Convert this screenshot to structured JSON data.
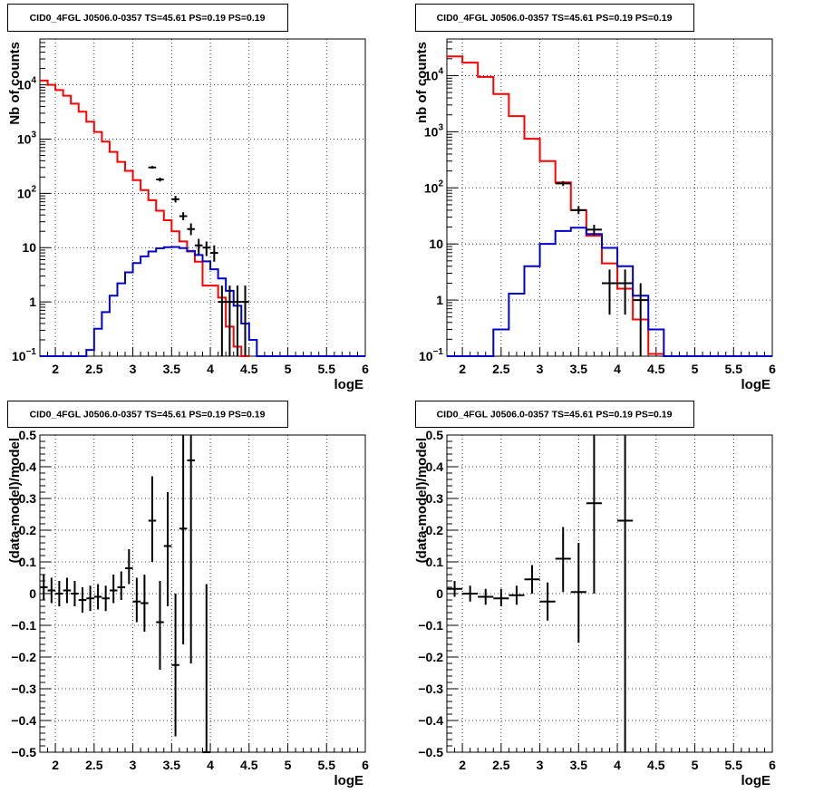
{
  "chart_data": [
    {
      "id": "tl",
      "type": "histogram",
      "title": "CID0_4FGL J0506.0-0357 TS=45.61 PS=0.19 PS=0.19",
      "xlabel": "logE",
      "ylabel": "Nb of counts",
      "xlim": [
        1.8,
        6.0
      ],
      "ylim": [
        0.1,
        70000
      ],
      "yscale": "log",
      "grid": true,
      "xticks": [
        "2",
        "2.5",
        "3",
        "3.5",
        "4",
        "4.5",
        "5",
        "5.5",
        "6"
      ],
      "yticks": [
        {
          "v": 0.1,
          "label": "10",
          "sup": "−1"
        },
        {
          "v": 1,
          "label": "1",
          "sup": ""
        },
        {
          "v": 10,
          "label": "10",
          "sup": ""
        },
        {
          "v": 100,
          "label": "10",
          "sup": "2"
        },
        {
          "v": 1000,
          "label": "10",
          "sup": "3"
        },
        {
          "v": 10000,
          "label": "10",
          "sup": "4"
        }
      ],
      "series": [
        {
          "kind": "step",
          "color": "#ff0000",
          "edges": [
            1.8,
            1.9,
            2.0,
            2.1,
            2.2,
            2.3,
            2.4,
            2.5,
            2.6,
            2.7,
            2.8,
            2.9,
            3.0,
            3.1,
            3.2,
            3.3,
            3.4,
            3.5,
            3.6,
            3.7,
            3.8,
            3.9,
            4.0,
            4.1,
            4.2,
            4.3,
            4.4,
            4.5
          ],
          "values": [
            12000,
            10000,
            8000,
            6300,
            4500,
            3200,
            2100,
            1350,
            900,
            580,
            380,
            260,
            175,
            115,
            75,
            48,
            32,
            20,
            13,
            8.5,
            5.5,
            2.0,
            2.0,
            1.2,
            0.35,
            0.15,
            0.09
          ]
        },
        {
          "kind": "step",
          "color": "#0000cc",
          "edges": [
            1.8,
            1.9,
            2.0,
            2.1,
            2.2,
            2.3,
            2.4,
            2.5,
            2.6,
            2.7,
            2.8,
            2.9,
            3.0,
            3.1,
            3.2,
            3.3,
            3.4,
            3.5,
            3.6,
            3.7,
            3.8,
            3.9,
            4.0,
            4.1,
            4.2,
            4.3,
            4.4,
            4.5,
            4.6,
            4.7,
            4.8,
            4.9,
            5.0,
            5.1,
            5.2,
            5.3,
            5.4,
            5.5,
            5.6,
            5.7,
            5.8,
            5.9,
            6.0
          ],
          "values": [
            0.1,
            0.1,
            0.1,
            0.1,
            0.1,
            0.1,
            0.13,
            0.32,
            0.65,
            1.3,
            2.2,
            3.5,
            5.2,
            6.9,
            8.5,
            9.7,
            10.2,
            10.3,
            9.8,
            8.7,
            7.3,
            5.6,
            4.0,
            2.7,
            1.6,
            0.85,
            0.4,
            0.2,
            0.1,
            0.1,
            0.1,
            0.1,
            0.1,
            0.1,
            0.1,
            0.1,
            0.1,
            0.1,
            0.1,
            0.1,
            0.1,
            0.1
          ]
        },
        {
          "kind": "errors",
          "color": "#000000",
          "points": [
            {
              "x": 3.25,
              "y": 300,
              "lo": 285,
              "hi": 320,
              "dx": 0.05
            },
            {
              "x": 3.35,
              "y": 180,
              "lo": 165,
              "hi": 195,
              "dx": 0.05
            },
            {
              "x": 3.55,
              "y": 78,
              "lo": 68,
              "hi": 90,
              "dx": 0.05
            },
            {
              "x": 3.65,
              "y": 38,
              "lo": 32,
              "hi": 45,
              "dx": 0.05
            },
            {
              "x": 3.75,
              "y": 22,
              "lo": 17,
              "hi": 28,
              "dx": 0.05
            },
            {
              "x": 3.85,
              "y": 11,
              "lo": 7.5,
              "hi": 14.5,
              "dx": 0.05
            },
            {
              "x": 3.95,
              "y": 10,
              "lo": 7,
              "hi": 13,
              "dx": 0.05
            },
            {
              "x": 4.05,
              "y": 8,
              "lo": 5.5,
              "hi": 11,
              "dx": 0.05
            },
            {
              "x": 4.15,
              "y": 1,
              "lo": 0.05,
              "hi": 2.0,
              "dx": 0.05
            },
            {
              "x": 4.25,
              "y": 1,
              "lo": 0.05,
              "hi": 2.0,
              "dx": 0.05
            },
            {
              "x": 4.35,
              "y": 1,
              "lo": 0.05,
              "hi": 2.0,
              "dx": 0.05
            },
            {
              "x": 4.45,
              "y": 1,
              "lo": 0.05,
              "hi": 2.0,
              "dx": 0.05
            }
          ]
        }
      ]
    },
    {
      "id": "tr",
      "type": "histogram",
      "title": "CID0_4FGL J0506.0-0357 TS=45.61 PS=0.19 PS=0.19",
      "xlabel": "logE",
      "ylabel": "nb of counts",
      "xlim": [
        1.8,
        6.0
      ],
      "ylim": [
        0.1,
        45000
      ],
      "yscale": "log",
      "grid": true,
      "xticks": [
        "2",
        "2.5",
        "3",
        "3.5",
        "4",
        "4.5",
        "5",
        "5.5",
        "6"
      ],
      "yticks": [
        {
          "v": 0.1,
          "label": "10",
          "sup": "−1"
        },
        {
          "v": 1,
          "label": "1",
          "sup": ""
        },
        {
          "v": 10,
          "label": "10",
          "sup": ""
        },
        {
          "v": 100,
          "label": "10",
          "sup": "2"
        },
        {
          "v": 1000,
          "label": "10",
          "sup": "3"
        },
        {
          "v": 10000,
          "label": "10",
          "sup": "4"
        }
      ],
      "series": [
        {
          "kind": "step",
          "color": "#ff0000",
          "edges": [
            1.8,
            2.0,
            2.2,
            2.4,
            2.6,
            2.8,
            3.0,
            3.2,
            3.4,
            3.6,
            3.8,
            4.0,
            4.2,
            4.4,
            4.6
          ],
          "values": [
            22000,
            17000,
            9500,
            4700,
            1900,
            750,
            300,
            125,
            40,
            14,
            4.5,
            1.6,
            0.45,
            0.11
          ]
        },
        {
          "kind": "step",
          "color": "#0000cc",
          "edges": [
            1.8,
            2.0,
            2.2,
            2.4,
            2.6,
            2.8,
            3.0,
            3.2,
            3.4,
            3.6,
            3.8,
            4.0,
            4.2,
            4.4,
            4.6,
            4.8,
            5.0,
            5.2,
            5.4,
            5.6,
            5.8,
            6.0
          ],
          "values": [
            0.1,
            0.1,
            0.1,
            0.3,
            1.3,
            4.0,
            10,
            17,
            19.5,
            15,
            8.5,
            4.0,
            1.2,
            0.3,
            0.1,
            0.1,
            0.1,
            0.1,
            0.1,
            0.1,
            0.1
          ]
        },
        {
          "kind": "errors",
          "color": "#000000",
          "points": [
            {
              "x": 3.3,
              "y": 120,
              "lo": 108,
              "hi": 132,
              "dx": 0.1
            },
            {
              "x": 3.5,
              "y": 40,
              "lo": 34,
              "hi": 47,
              "dx": 0.1
            },
            {
              "x": 3.7,
              "y": 18,
              "lo": 14,
              "hi": 22,
              "dx": 0.1
            },
            {
              "x": 3.9,
              "y": 2,
              "lo": 0.55,
              "hi": 3.5,
              "dx": 0.1
            },
            {
              "x": 4.1,
              "y": 2,
              "lo": 0.55,
              "hi": 3.5,
              "dx": 0.1
            },
            {
              "x": 4.3,
              "y": 1,
              "lo": 0.05,
              "hi": 2.0,
              "dx": 0.1
            }
          ]
        }
      ]
    },
    {
      "id": "bl",
      "type": "scatter",
      "title": "CID0_4FGL J0506.0-0357 TS=45.61 PS=0.19 PS=0.19",
      "xlabel": "logE",
      "ylabel": "(data-model)/model",
      "xlim": [
        1.8,
        6.0
      ],
      "ylim": [
        -0.5,
        0.5
      ],
      "yscale": "linear",
      "grid": true,
      "xticks": [
        "2",
        "2.5",
        "3",
        "3.5",
        "4",
        "4.5",
        "5",
        "5.5",
        "6"
      ],
      "yticks": [
        {
          "v": -0.5,
          "label": "−0.5",
          "sup": ""
        },
        {
          "v": -0.4,
          "label": "−0.4",
          "sup": ""
        },
        {
          "v": -0.3,
          "label": "−0.3",
          "sup": ""
        },
        {
          "v": -0.2,
          "label": "−0.2",
          "sup": ""
        },
        {
          "v": -0.1,
          "label": "−0.1",
          "sup": ""
        },
        {
          "v": 0,
          "label": "0",
          "sup": ""
        },
        {
          "v": 0.1,
          "label": "0.1",
          "sup": ""
        },
        {
          "v": 0.2,
          "label": "0.2",
          "sup": ""
        },
        {
          "v": 0.3,
          "label": "0.3",
          "sup": ""
        },
        {
          "v": 0.4,
          "label": "0.4",
          "sup": ""
        },
        {
          "v": 0.5,
          "label": "0.5",
          "sup": ""
        }
      ],
      "series": [
        {
          "kind": "errors",
          "color": "#000000",
          "points": [
            {
              "x": 1.85,
              "y": 0.02,
              "lo": -0.02,
              "hi": 0.06,
              "dx": 0.05
            },
            {
              "x": 1.95,
              "y": 0.01,
              "lo": -0.03,
              "hi": 0.05,
              "dx": 0.05
            },
            {
              "x": 2.05,
              "y": 0.0,
              "lo": -0.04,
              "hi": 0.04,
              "dx": 0.05
            },
            {
              "x": 2.15,
              "y": 0.01,
              "lo": -0.03,
              "hi": 0.05,
              "dx": 0.05
            },
            {
              "x": 2.25,
              "y": 0.0,
              "lo": -0.04,
              "hi": 0.04,
              "dx": 0.05
            },
            {
              "x": 2.35,
              "y": -0.02,
              "lo": -0.06,
              "hi": 0.02,
              "dx": 0.05
            },
            {
              "x": 2.45,
              "y": -0.015,
              "lo": -0.055,
              "hi": 0.025,
              "dx": 0.05
            },
            {
              "x": 2.55,
              "y": -0.01,
              "lo": -0.05,
              "hi": 0.03,
              "dx": 0.05
            },
            {
              "x": 2.65,
              "y": -0.015,
              "lo": -0.055,
              "hi": 0.025,
              "dx": 0.05
            },
            {
              "x": 2.75,
              "y": 0.01,
              "lo": -0.03,
              "hi": 0.06,
              "dx": 0.05
            },
            {
              "x": 2.85,
              "y": 0.02,
              "lo": -0.02,
              "hi": 0.07,
              "dx": 0.05
            },
            {
              "x": 2.95,
              "y": 0.08,
              "lo": 0.03,
              "hi": 0.14,
              "dx": 0.05
            },
            {
              "x": 3.05,
              "y": -0.025,
              "lo": -0.09,
              "hi": 0.05,
              "dx": 0.05
            },
            {
              "x": 3.15,
              "y": -0.03,
              "lo": -0.12,
              "hi": 0.06,
              "dx": 0.05
            },
            {
              "x": 3.25,
              "y": 0.23,
              "lo": 0.1,
              "hi": 0.37,
              "dx": 0.05
            },
            {
              "x": 3.35,
              "y": -0.09,
              "lo": -0.24,
              "hi": 0.04,
              "dx": 0.05
            },
            {
              "x": 3.45,
              "y": 0.15,
              "lo": -0.04,
              "hi": 0.32,
              "dx": 0.05
            },
            {
              "x": 3.55,
              "y": -0.225,
              "lo": -0.45,
              "hi": 0.0,
              "dx": 0.05
            },
            {
              "x": 3.65,
              "y": 0.205,
              "lo": -0.16,
              "hi": 0.5,
              "dx": 0.05
            },
            {
              "x": 3.75,
              "y": 0.42,
              "lo": -0.22,
              "hi": 0.5,
              "dx": 0.05
            },
            {
              "x": 3.95,
              "y": -0.5,
              "lo": -0.5,
              "hi": 0.03,
              "dx": 0.05
            }
          ]
        }
      ]
    },
    {
      "id": "br",
      "type": "scatter",
      "title": "CID0_4FGL J0506.0-0357 TS=45.61 PS=0.19 PS=0.19",
      "xlabel": "logE",
      "ylabel": "(data-model)/model",
      "xlim": [
        1.8,
        6.0
      ],
      "ylim": [
        -0.5,
        0.5
      ],
      "yscale": "linear",
      "grid": true,
      "xticks": [
        "2",
        "2.5",
        "3",
        "3.5",
        "4",
        "4.5",
        "5",
        "5.5",
        "6"
      ],
      "yticks": [
        {
          "v": -0.5,
          "label": "−0.5",
          "sup": ""
        },
        {
          "v": -0.4,
          "label": "−0.4",
          "sup": ""
        },
        {
          "v": -0.3,
          "label": "−0.3",
          "sup": ""
        },
        {
          "v": -0.2,
          "label": "−0.2",
          "sup": ""
        },
        {
          "v": -0.1,
          "label": "−0.1",
          "sup": ""
        },
        {
          "v": 0,
          "label": "0",
          "sup": ""
        },
        {
          "v": 0.1,
          "label": "0.1",
          "sup": ""
        },
        {
          "v": 0.2,
          "label": "0.2",
          "sup": ""
        },
        {
          "v": 0.3,
          "label": "0.3",
          "sup": ""
        },
        {
          "v": 0.4,
          "label": "0.4",
          "sup": ""
        },
        {
          "v": 0.5,
          "label": "0.5",
          "sup": ""
        }
      ],
      "series": [
        {
          "kind": "errors",
          "color": "#000000",
          "points": [
            {
              "x": 1.9,
              "y": 0.015,
              "lo": -0.01,
              "hi": 0.04,
              "dx": 0.1
            },
            {
              "x": 2.1,
              "y": 0.0,
              "lo": -0.025,
              "hi": 0.025,
              "dx": 0.1
            },
            {
              "x": 2.3,
              "y": -0.01,
              "lo": -0.035,
              "hi": 0.015,
              "dx": 0.1
            },
            {
              "x": 2.5,
              "y": -0.015,
              "lo": -0.04,
              "hi": 0.015,
              "dx": 0.1
            },
            {
              "x": 2.7,
              "y": -0.005,
              "lo": -0.035,
              "hi": 0.025,
              "dx": 0.1
            },
            {
              "x": 2.9,
              "y": 0.045,
              "lo": 0.0,
              "hi": 0.09,
              "dx": 0.1
            },
            {
              "x": 3.1,
              "y": -0.025,
              "lo": -0.085,
              "hi": 0.035,
              "dx": 0.1
            },
            {
              "x": 3.3,
              "y": 0.11,
              "lo": 0.005,
              "hi": 0.21,
              "dx": 0.1
            },
            {
              "x": 3.5,
              "y": 0.005,
              "lo": -0.155,
              "hi": 0.16,
              "dx": 0.1
            },
            {
              "x": 3.7,
              "y": 0.285,
              "lo": 0.0,
              "hi": 0.5,
              "dx": 0.1
            },
            {
              "x": 4.1,
              "y": 0.23,
              "lo": -0.5,
              "hi": 0.5,
              "dx": 0.1
            }
          ]
        }
      ]
    }
  ]
}
